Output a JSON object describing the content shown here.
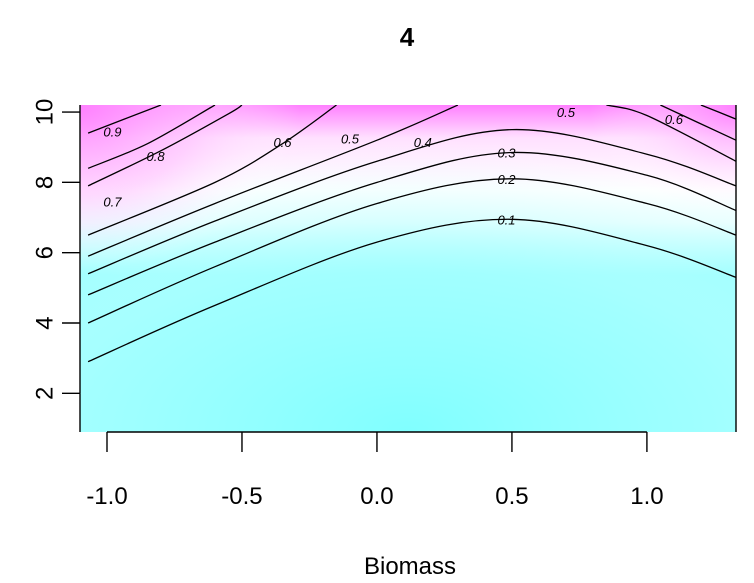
{
  "chart_data": {
    "type": "heatmap",
    "subtype": "filled-contour",
    "title": "4",
    "xlabel": "Biomass",
    "ylabel": "",
    "xlim": [
      -1.1,
      1.33
    ],
    "ylim": [
      0.9,
      10.2
    ],
    "x_ticks": [
      -1.0,
      -0.5,
      0.0,
      0.5,
      1.0
    ],
    "x_tick_labels": [
      "-1.0",
      "-0.5",
      "0.0",
      "0.5",
      "1.0"
    ],
    "y_ticks": [
      2,
      4,
      6,
      8,
      10
    ],
    "y_tick_labels": [
      "2",
      "4",
      "6",
      "8",
      "10"
    ],
    "colors": {
      "low": "#80FFFF",
      "mid": "#FFFFFF",
      "high": "#FF80FF"
    },
    "contours": [
      {
        "level": 0.1,
        "label": "0.1",
        "x": [
          -1.07,
          -0.6,
          0.0,
          0.5,
          1.0,
          1.33
        ],
        "y": [
          2.9,
          4.5,
          6.3,
          6.95,
          6.2,
          5.3
        ]
      },
      {
        "level": 0.2,
        "label": "0.2",
        "x": [
          -1.07,
          -0.6,
          0.0,
          0.5,
          1.0,
          1.33
        ],
        "y": [
          4.0,
          5.6,
          7.4,
          8.1,
          7.4,
          6.5
        ]
      },
      {
        "level": 0.3,
        "label": "0.3",
        "x": [
          -1.07,
          -0.6,
          0.0,
          0.5,
          1.0,
          1.33
        ],
        "y": [
          4.8,
          6.3,
          8.0,
          8.85,
          8.2,
          7.2
        ]
      },
      {
        "level": 0.4,
        "label": "0.4",
        "x": [
          -1.07,
          -0.6,
          0.0,
          0.5,
          1.0,
          1.33
        ],
        "y": [
          5.4,
          6.9,
          8.6,
          9.5,
          8.8,
          7.9
        ]
      },
      {
        "level": 0.5,
        "label": "0.5",
        "x": [
          -1.07,
          -0.6,
          0.0,
          0.3
        ],
        "y": [
          5.9,
          7.4,
          9.2,
          10.2
        ],
        "x2": [
          0.85,
          1.0,
          1.33
        ],
        "y2": [
          10.2,
          9.9,
          8.6
        ]
      },
      {
        "level": 0.6,
        "label": "0.6",
        "x": [
          -1.07,
          -0.6,
          -0.35,
          -0.15
        ],
        "y": [
          6.5,
          8.0,
          9.1,
          10.2
        ],
        "x2": [
          1.05,
          1.33
        ],
        "y2": [
          10.2,
          9.2
        ]
      },
      {
        "level": 0.7,
        "label": "0.7",
        "x": [
          -1.07,
          -0.8,
          -0.55,
          -0.5
        ],
        "y": [
          7.9,
          8.9,
          9.95,
          10.2
        ],
        "x2": [
          1.2,
          1.33
        ],
        "y2": [
          10.2,
          9.8
        ]
      },
      {
        "level": 0.8,
        "label": "0.8",
        "x": [
          -1.07,
          -0.85,
          -0.6
        ],
        "y": [
          8.4,
          9.1,
          10.2
        ]
      },
      {
        "level": 0.9,
        "label": "0.9",
        "x": [
          -1.07,
          -0.8
        ],
        "y": [
          9.4,
          10.2
        ]
      }
    ],
    "contour_labels": [
      {
        "text": "0.9",
        "x": -0.98,
        "y": 9.45
      },
      {
        "text": "0.8",
        "x": -0.82,
        "y": 8.75
      },
      {
        "text": "0.7",
        "x": -0.98,
        "y": 7.45
      },
      {
        "text": "0.6",
        "x": -0.35,
        "y": 9.15
      },
      {
        "text": "0.5",
        "x": -0.1,
        "y": 9.25
      },
      {
        "text": "0.4",
        "x": 0.17,
        "y": 9.15
      },
      {
        "text": "0.3",
        "x": 0.48,
        "y": 8.85
      },
      {
        "text": "0.2",
        "x": 0.48,
        "y": 8.1
      },
      {
        "text": "0.1",
        "x": 0.48,
        "y": 6.95
      },
      {
        "text": "0.5",
        "x": 0.7,
        "y": 10.0
      },
      {
        "text": "0.6",
        "x": 1.1,
        "y": 9.8
      }
    ]
  }
}
